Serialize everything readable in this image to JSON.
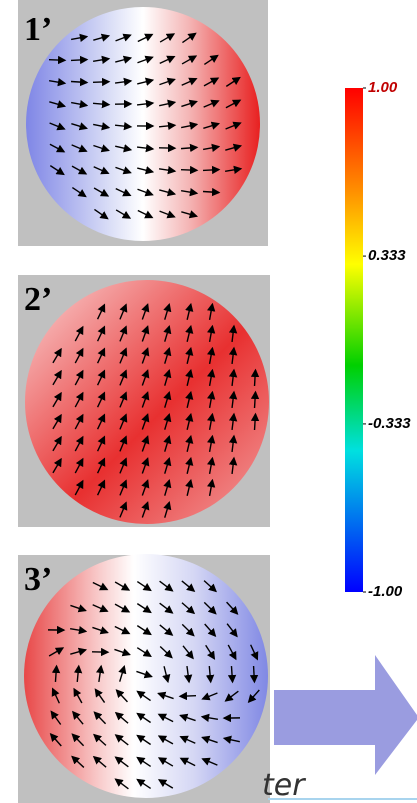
{
  "panels": [
    {
      "label": "1’"
    },
    {
      "label": "2’"
    },
    {
      "label": "3’"
    }
  ],
  "colorbar": {
    "lim": [
      -1,
      1
    ],
    "ticks": [
      {
        "value": 1,
        "label": "1.00"
      },
      {
        "value": 0.333,
        "label": "0.333"
      },
      {
        "value": -0.333,
        "label": "-0.333"
      },
      {
        "value": -1,
        "label": "-1.00"
      }
    ]
  },
  "caption_fragment": "ter"
}
